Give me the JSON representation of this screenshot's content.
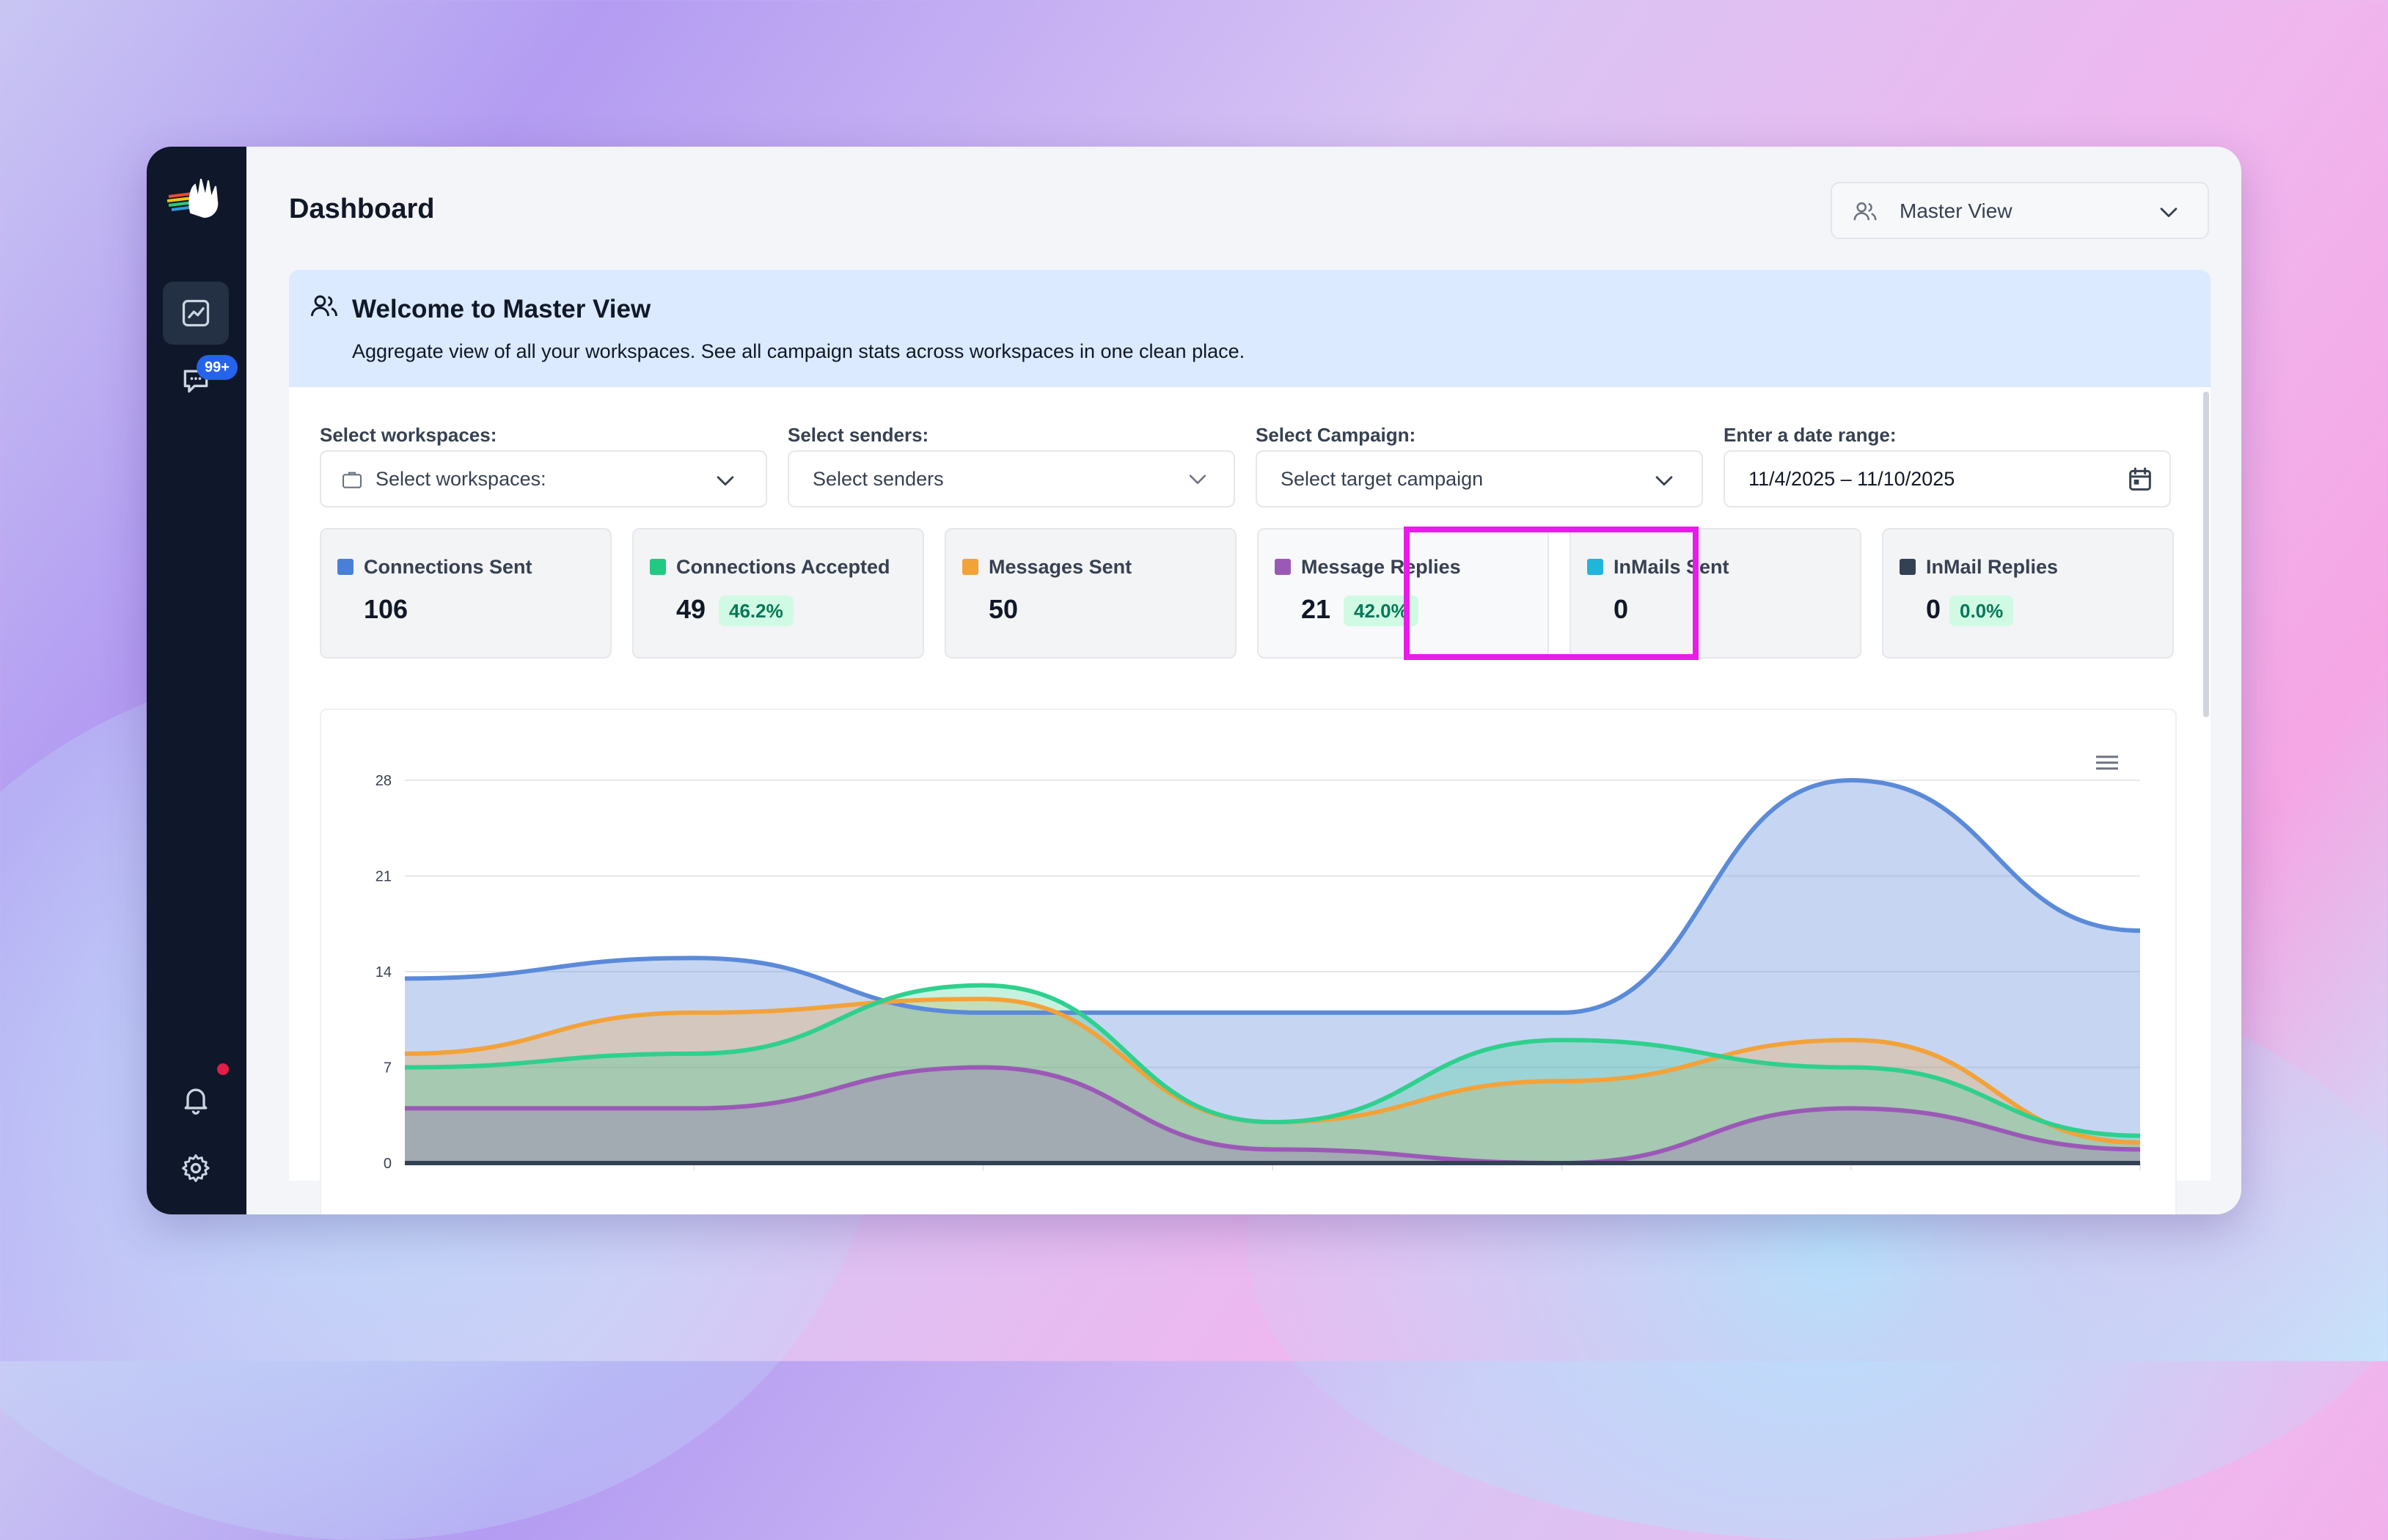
{
  "header": {
    "title": "Dashboard",
    "view_select": "Master View"
  },
  "sidebar": {
    "messages_badge": "99+"
  },
  "banner": {
    "title": "Welcome to Master View",
    "description": "Aggregate view of all your workspaces. See all campaign stats across workspaces in one clean place."
  },
  "filters": {
    "workspaces": {
      "label": "Select workspaces:",
      "placeholder": "Select workspaces:"
    },
    "senders": {
      "label": "Select senders:",
      "placeholder": "Select senders"
    },
    "campaign": {
      "label": "Select Campaign:",
      "placeholder": "Select target campaign"
    },
    "date": {
      "label": "Enter a date range:",
      "value": "11/4/2025 – 11/10/2025"
    }
  },
  "stats": [
    {
      "label": "Connections Sent",
      "value": "106",
      "pct": "",
      "color": "#4a7fd6"
    },
    {
      "label": "Connections Accepted",
      "value": "49",
      "pct": "46.2%",
      "color": "#22c983"
    },
    {
      "label": "Messages Sent",
      "value": "50",
      "pct": "",
      "color": "#f3a23a"
    },
    {
      "label": "Message Replies",
      "value": "21",
      "pct": "42.0%",
      "color": "#9b59b6"
    },
    {
      "label": "InMails Sent",
      "value": "0",
      "pct": "",
      "color": "#22b5dc"
    },
    {
      "label": "InMail Replies",
      "value": "0",
      "pct": "0.0%",
      "color": "#334155"
    }
  ],
  "chart_data": {
    "type": "area",
    "yticks": [
      "28",
      "21",
      "14",
      "7",
      "0"
    ],
    "ylim": [
      0,
      28
    ],
    "x": [
      0,
      1,
      2,
      3,
      4,
      5,
      6
    ],
    "series": [
      {
        "values": [
          13.5,
          15,
          11,
          11,
          11,
          28,
          17
        ],
        "color": "#5b8ad9"
      },
      {
        "values": [
          8,
          11,
          12,
          3,
          6,
          9,
          1.5
        ],
        "color": "#f3a23a"
      },
      {
        "values": [
          7,
          8,
          13,
          3,
          9,
          7,
          2
        ],
        "color": "#2fd08e"
      },
      {
        "values": [
          4,
          4,
          7,
          1,
          0,
          4,
          1
        ],
        "color": "#9b59b6"
      },
      {
        "values": [
          0,
          0,
          0,
          0,
          0,
          0,
          0
        ],
        "color": "#334155"
      }
    ]
  }
}
